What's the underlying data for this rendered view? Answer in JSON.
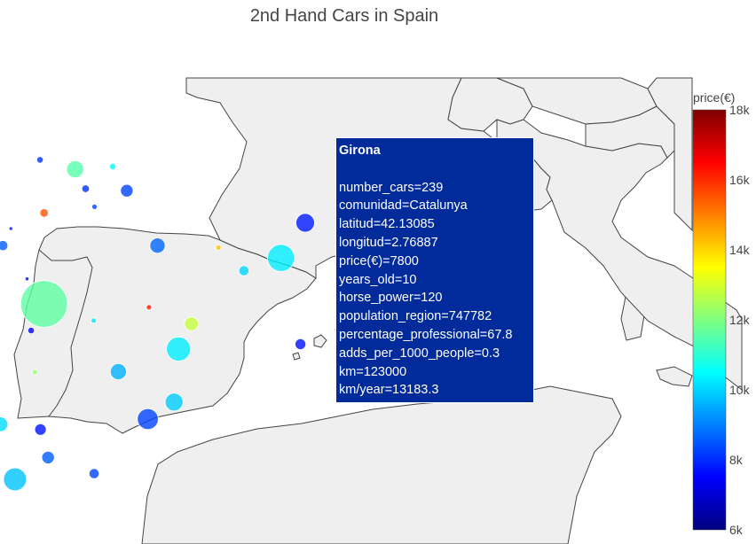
{
  "title": "2nd Hand Cars in Spain",
  "colorbar": {
    "title": "price(€)",
    "min": 6000,
    "max": 18000,
    "ticks": [
      {
        "value": 18000,
        "label": "18k"
      },
      {
        "value": 16000,
        "label": "16k"
      },
      {
        "value": 14000,
        "label": "14k"
      },
      {
        "value": 12000,
        "label": "12k"
      },
      {
        "value": 10000,
        "label": "10k"
      },
      {
        "value": 8000,
        "label": "8k"
      },
      {
        "value": 6000,
        "label": "6k"
      }
    ],
    "colorscale": [
      "#00007f",
      "#0000ff",
      "#0080ff",
      "#00ffff",
      "#80ff80",
      "#ffff00",
      "#ff8000",
      "#ff0000",
      "#7f0000"
    ]
  },
  "hover": {
    "title": "Girona",
    "lines": [
      "number_cars=239",
      "comunidad=Catalunya",
      "latitud=42.13085",
      "longitud=2.76887",
      "price(€)=7800",
      "years_old=10",
      "horse_power=120",
      "population_region=747782",
      "percentage_professional=67.8",
      "adds_per_1000_people=0.3",
      "km=123000",
      "km/year=13183.3"
    ]
  },
  "chart_data": {
    "type": "scatter",
    "subtype": "scatter_geo",
    "title": "2nd Hand Cars in Spain",
    "color_variable": "price(€)",
    "size_variable": "number_cars",
    "points": [
      {
        "longitud": -8.4,
        "latitud": 43.37,
        "price": 10200,
        "number_cars": 110
      },
      {
        "longitud": -7.55,
        "latitud": 43.01,
        "price": 10000,
        "number_cars": 40
      },
      {
        "longitud": -5.85,
        "latitud": 43.36,
        "price": 8600,
        "number_cars": 110
      },
      {
        "longitud": -3.8,
        "latitud": 43.46,
        "price": 8100,
        "number_cars": 30
      },
      {
        "longitud": -2.93,
        "latitud": 43.26,
        "price": 11500,
        "number_cars": 200
      },
      {
        "longitud": -2.0,
        "latitud": 43.32,
        "price": 10600,
        "number_cars": 30
      },
      {
        "longitud": -1.65,
        "latitud": 42.81,
        "price": 8300,
        "number_cars": 110
      },
      {
        "longitud": -2.67,
        "latitud": 42.85,
        "price": 8100,
        "number_cars": 40
      },
      {
        "longitud": -8.7,
        "latitud": 42.24,
        "price": 10000,
        "number_cars": 90
      },
      {
        "longitud": -8.0,
        "latitud": 42.1,
        "price": 10500,
        "number_cars": 20
      },
      {
        "longitud": -5.57,
        "latitud": 42.6,
        "price": 8400,
        "number_cars": 20
      },
      {
        "longitud": -4.52,
        "latitud": 42.01,
        "price": 7800,
        "number_cars": 10
      },
      {
        "longitud": -3.7,
        "latitud": 42.34,
        "price": 15500,
        "number_cars": 50
      },
      {
        "longitud": -2.45,
        "latitud": 42.47,
        "price": 8300,
        "number_cars": 20
      },
      {
        "longitud": 0.62,
        "latitud": 41.61,
        "price": 14200,
        "number_cars": 20
      },
      {
        "longitud": 1.25,
        "latitud": 41.12,
        "price": 10000,
        "number_cars": 70
      },
      {
        "longitud": 2.17,
        "latitud": 41.39,
        "price": 10300,
        "number_cars": 500
      },
      {
        "longitud": 2.77,
        "latitud": 42.13,
        "price": 7800,
        "number_cars": 239
      },
      {
        "longitud": -0.89,
        "latitud": 41.65,
        "price": 8700,
        "number_cars": 160
      },
      {
        "longitud": -5.66,
        "latitud": 40.97,
        "price": 8800,
        "number_cars": 10
      },
      {
        "longitud": -4.72,
        "latitud": 41.65,
        "price": 8600,
        "number_cars": 70
      },
      {
        "longitud": -4.12,
        "latitud": 40.95,
        "price": 7600,
        "number_cars": 10
      },
      {
        "longitud": -3.7,
        "latitud": 40.42,
        "price": 11600,
        "number_cars": 1500
      },
      {
        "longitud": -2.47,
        "latitud": 40.07,
        "price": 10200,
        "number_cars": 20
      },
      {
        "longitud": -6.37,
        "latitud": 39.47,
        "price": 10100,
        "number_cars": 120
      },
      {
        "longitud": -6.97,
        "latitud": 38.88,
        "price": 11700,
        "number_cars": 90
      },
      {
        "longitud": -4.02,
        "latitud": 39.86,
        "price": 7500,
        "number_cars": 30
      },
      {
        "longitud": -1.86,
        "latitud": 38.99,
        "price": 9600,
        "number_cars": 180
      },
      {
        "longitud": -0.37,
        "latitud": 39.47,
        "price": 10300,
        "number_cars": 400
      },
      {
        "longitud": -0.05,
        "latitud": 40.0,
        "price": 12800,
        "number_cars": 130
      },
      {
        "longitud": -1.1,
        "latitud": 40.35,
        "price": 16200,
        "number_cars": 20
      },
      {
        "longitud": -3.93,
        "latitud": 38.98,
        "price": 12300,
        "number_cars": 20
      },
      {
        "longitud": -5.98,
        "latitud": 37.39,
        "price": 10100,
        "number_cars": 550
      },
      {
        "longitud": -4.78,
        "latitud": 37.88,
        "price": 10100,
        "number_cars": 150
      },
      {
        "longitud": -3.79,
        "latitud": 37.77,
        "price": 7700,
        "number_cars": 90
      },
      {
        "longitud": -3.6,
        "latitud": 37.18,
        "price": 8600,
        "number_cars": 110
      },
      {
        "longitud": -2.46,
        "latitud": 36.84,
        "price": 8300,
        "number_cars": 70
      },
      {
        "longitud": -0.48,
        "latitud": 38.35,
        "price": 9900,
        "number_cars": 220
      },
      {
        "longitud": -1.13,
        "latitud": 37.99,
        "price": 8300,
        "number_cars": 300
      },
      {
        "longitud": -4.42,
        "latitud": 36.72,
        "price": 9800,
        "number_cars": 360
      },
      {
        "longitud": -6.29,
        "latitud": 36.53,
        "price": 11400,
        "number_cars": 140
      },
      {
        "longitud": -6.95,
        "latitud": 37.26,
        "price": 8700,
        "number_cars": 50
      },
      {
        "longitud": 2.65,
        "latitud": 39.57,
        "price": 7700,
        "number_cars": 80
      }
    ]
  }
}
